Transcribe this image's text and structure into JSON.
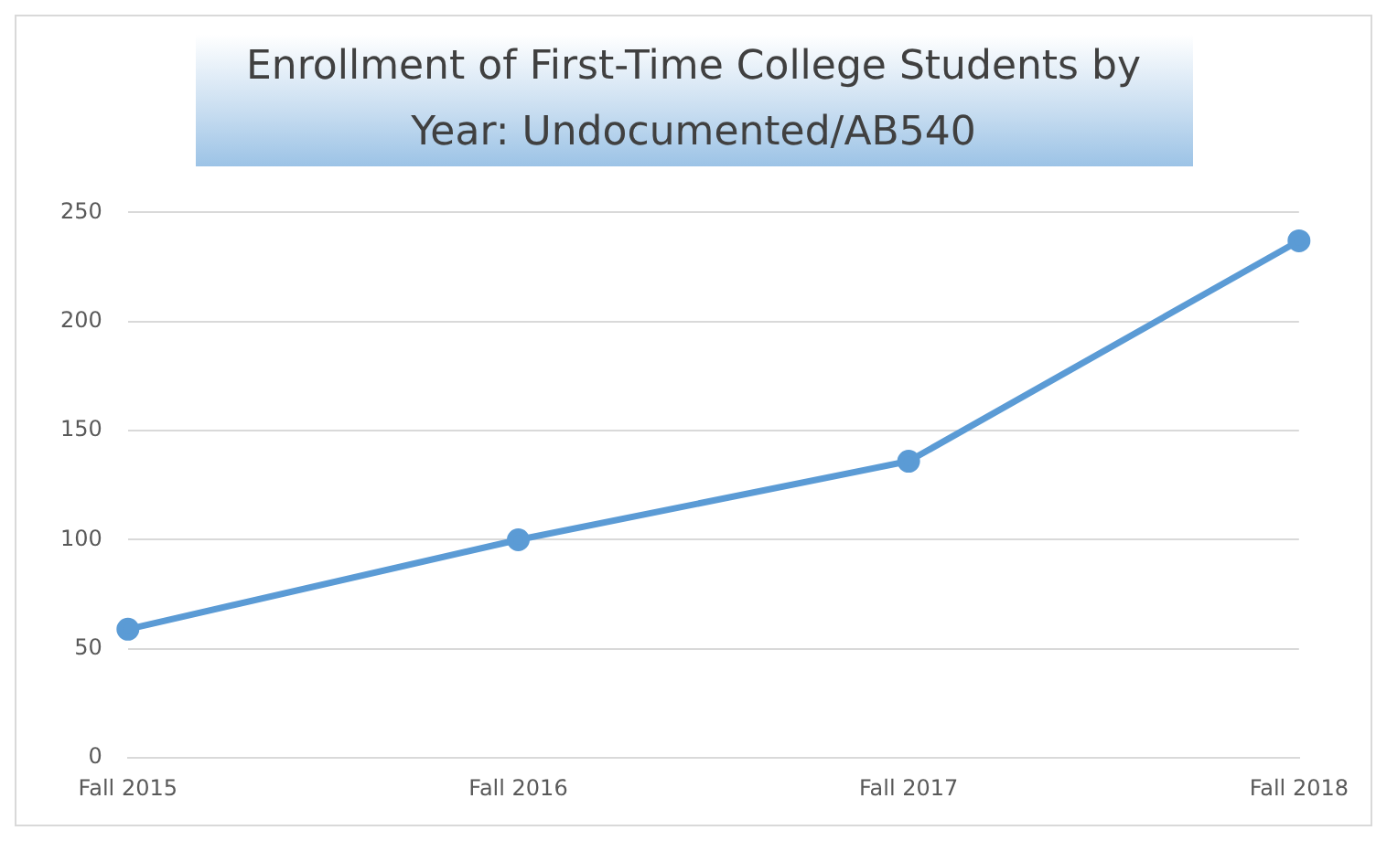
{
  "chart_data": {
    "type": "line",
    "title": "Enrollment of First-Time College Students by Year: Undocumented/AB540",
    "categories": [
      "Fall 2015",
      "Fall 2016",
      "Fall 2017",
      "Fall 2018"
    ],
    "series": [
      {
        "color": "#5b9bd5",
        "values": [
          59,
          100,
          136,
          237
        ]
      }
    ],
    "ylim": [
      0,
      250
    ],
    "yticks": [
      0,
      50,
      100,
      150,
      200,
      250
    ],
    "grid": "y",
    "legend": false,
    "marker": "circle",
    "line_style": "solid"
  }
}
